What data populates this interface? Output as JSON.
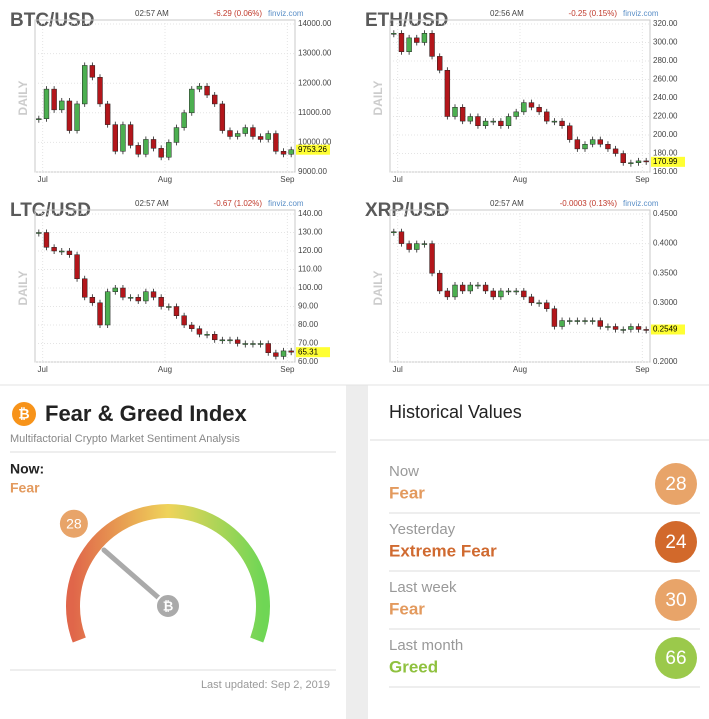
{
  "chart_data": [
    {
      "type": "candlestick",
      "title": "BTC/USD",
      "time": "02:57 AM",
      "change": "-6.29 (0.06%)",
      "source": "finviz.com",
      "ylabel": "DAILY",
      "up_color": "#4caf50",
      "down_color": "#b3161b",
      "values": [
        10800,
        11800,
        11100,
        11400,
        10400,
        11300,
        12600,
        12200,
        11300,
        10600,
        9700,
        10600,
        9900,
        9600,
        10100,
        9800,
        9500,
        10000,
        10500,
        11000,
        11800,
        11900,
        11600,
        11300,
        10400,
        10200,
        10300,
        10500,
        10200,
        10100,
        10300,
        9700,
        9600,
        9753.26
      ],
      "xlim": [
        0,
        34
      ],
      "xticks": [
        {
          "value": 1,
          "label": "Jul"
        },
        {
          "value": 17,
          "label": "Aug"
        },
        {
          "value": 33,
          "label": "Sep"
        }
      ],
      "ylim": [
        9000,
        14000
      ],
      "yticks": [
        {
          "value": 9000,
          "label": "9000.00"
        },
        {
          "value": 10000,
          "label": "10000.00"
        },
        {
          "value": 11000,
          "label": "11000.00"
        },
        {
          "value": 12000,
          "label": "12000.00"
        },
        {
          "value": 13000,
          "label": "13000.00"
        },
        {
          "value": 14000,
          "label": "14000.00"
        }
      ],
      "grid": true
    },
    {
      "type": "candlestick",
      "title": "ETH/USD",
      "time": "02:56 AM",
      "change": "-0.25 (0.15%)",
      "source": "finviz.com",
      "ylabel": "DAILY",
      "up_color": "#4caf50",
      "down_color": "#b3161b",
      "values": [
        310,
        290,
        305,
        300,
        310,
        285,
        270,
        220,
        230,
        215,
        220,
        210,
        215,
        215,
        210,
        220,
        225,
        235,
        230,
        225,
        215,
        215,
        210,
        195,
        185,
        190,
        195,
        190,
        185,
        180,
        170,
        170,
        172,
        170.99
      ],
      "xlim": [
        0,
        34
      ],
      "xticks": [
        {
          "value": 1,
          "label": "Jul"
        },
        {
          "value": 17,
          "label": "Aug"
        },
        {
          "value": 33,
          "label": "Sep"
        }
      ],
      "ylim": [
        160,
        320
      ],
      "yticks": [
        {
          "value": 160,
          "label": "160.00"
        },
        {
          "value": 180,
          "label": "180.00"
        },
        {
          "value": 200,
          "label": "200.00"
        },
        {
          "value": 220,
          "label": "220.00"
        },
        {
          "value": 240,
          "label": "240.00"
        },
        {
          "value": 260,
          "label": "260.00"
        },
        {
          "value": 280,
          "label": "280.00"
        },
        {
          "value": 300,
          "label": "300.00"
        },
        {
          "value": 320,
          "label": "320.00"
        }
      ],
      "grid": true
    },
    {
      "type": "candlestick",
      "title": "LTC/USD",
      "time": "02:57 AM",
      "change": "-0.67 (1.02%)",
      "source": "finviz.com",
      "ylabel": "DAILY",
      "up_color": "#4caf50",
      "down_color": "#b3161b",
      "values": [
        130,
        122,
        120,
        120,
        118,
        105,
        95,
        92,
        80,
        98,
        100,
        95,
        95,
        93,
        98,
        95,
        90,
        90,
        85,
        80,
        78,
        75,
        75,
        72,
        72,
        72,
        70,
        70,
        70,
        70,
        65,
        63,
        66,
        65.31
      ],
      "xlim": [
        0,
        34
      ],
      "xticks": [
        {
          "value": 1,
          "label": "Jul"
        },
        {
          "value": 17,
          "label": "Aug"
        },
        {
          "value": 33,
          "label": "Sep"
        }
      ],
      "ylim": [
        60,
        140
      ],
      "yticks": [
        {
          "value": 60,
          "label": "60.00"
        },
        {
          "value": 70,
          "label": "70.00"
        },
        {
          "value": 80,
          "label": "80.00"
        },
        {
          "value": 90,
          "label": "90.00"
        },
        {
          "value": 100,
          "label": "100.00"
        },
        {
          "value": 110,
          "label": "110.00"
        },
        {
          "value": 120,
          "label": "120.00"
        },
        {
          "value": 130,
          "label": "130.00"
        },
        {
          "value": 140,
          "label": "140.00"
        }
      ],
      "grid": true
    },
    {
      "type": "candlestick",
      "title": "XRP/USD",
      "time": "02:57 AM",
      "change": "-0.0003 (0.13%)",
      "source": "finviz.com",
      "ylabel": "DAILY",
      "up_color": "#4caf50",
      "down_color": "#b3161b",
      "values": [
        0.42,
        0.4,
        0.39,
        0.4,
        0.4,
        0.35,
        0.32,
        0.31,
        0.33,
        0.32,
        0.33,
        0.33,
        0.32,
        0.31,
        0.32,
        0.32,
        0.32,
        0.31,
        0.3,
        0.3,
        0.29,
        0.26,
        0.27,
        0.27,
        0.27,
        0.27,
        0.27,
        0.26,
        0.26,
        0.255,
        0.255,
        0.26,
        0.255,
        0.2549
      ],
      "xlim": [
        0,
        34
      ],
      "xticks": [
        {
          "value": 1,
          "label": "Jul"
        },
        {
          "value": 17,
          "label": "Aug"
        },
        {
          "value": 33,
          "label": "Sep"
        }
      ],
      "ylim": [
        0.2,
        0.45
      ],
      "yticks": [
        {
          "value": 0.2,
          "label": "0.2000"
        },
        {
          "value": 0.25,
          "label": "0.2500"
        },
        {
          "value": 0.3,
          "label": "0.3000"
        },
        {
          "value": 0.35,
          "label": "0.3500"
        },
        {
          "value": 0.4,
          "label": "0.4000"
        },
        {
          "value": 0.45,
          "label": "0.4500"
        }
      ],
      "grid": true
    }
  ],
  "fear_greed": {
    "title": "Fear & Greed Index",
    "subtitle": "Multifactorial Crypto Market Sentiment Analysis",
    "now_label": "Now:",
    "classification": "Fear",
    "value": 28,
    "range": [
      0,
      100
    ],
    "color": "#e39a5e",
    "updated": "Last updated: Sep 2, 2019"
  },
  "historical": {
    "title": "Historical Values",
    "rows": [
      {
        "label": "Now",
        "classification": "Fear",
        "value": 28,
        "color": "#e8a469",
        "text_color": "#e39a5e"
      },
      {
        "label": "Yesterday",
        "classification": "Extreme Fear",
        "value": 24,
        "color": "#d2692b",
        "text_color": "#d06a30"
      },
      {
        "label": "Last week",
        "classification": "Fear",
        "value": 30,
        "color": "#e8a469",
        "text_color": "#e39a5e"
      },
      {
        "label": "Last month",
        "classification": "Greed",
        "value": 66,
        "color": "#9bc94b",
        "text_color": "#8fc13f"
      }
    ]
  }
}
